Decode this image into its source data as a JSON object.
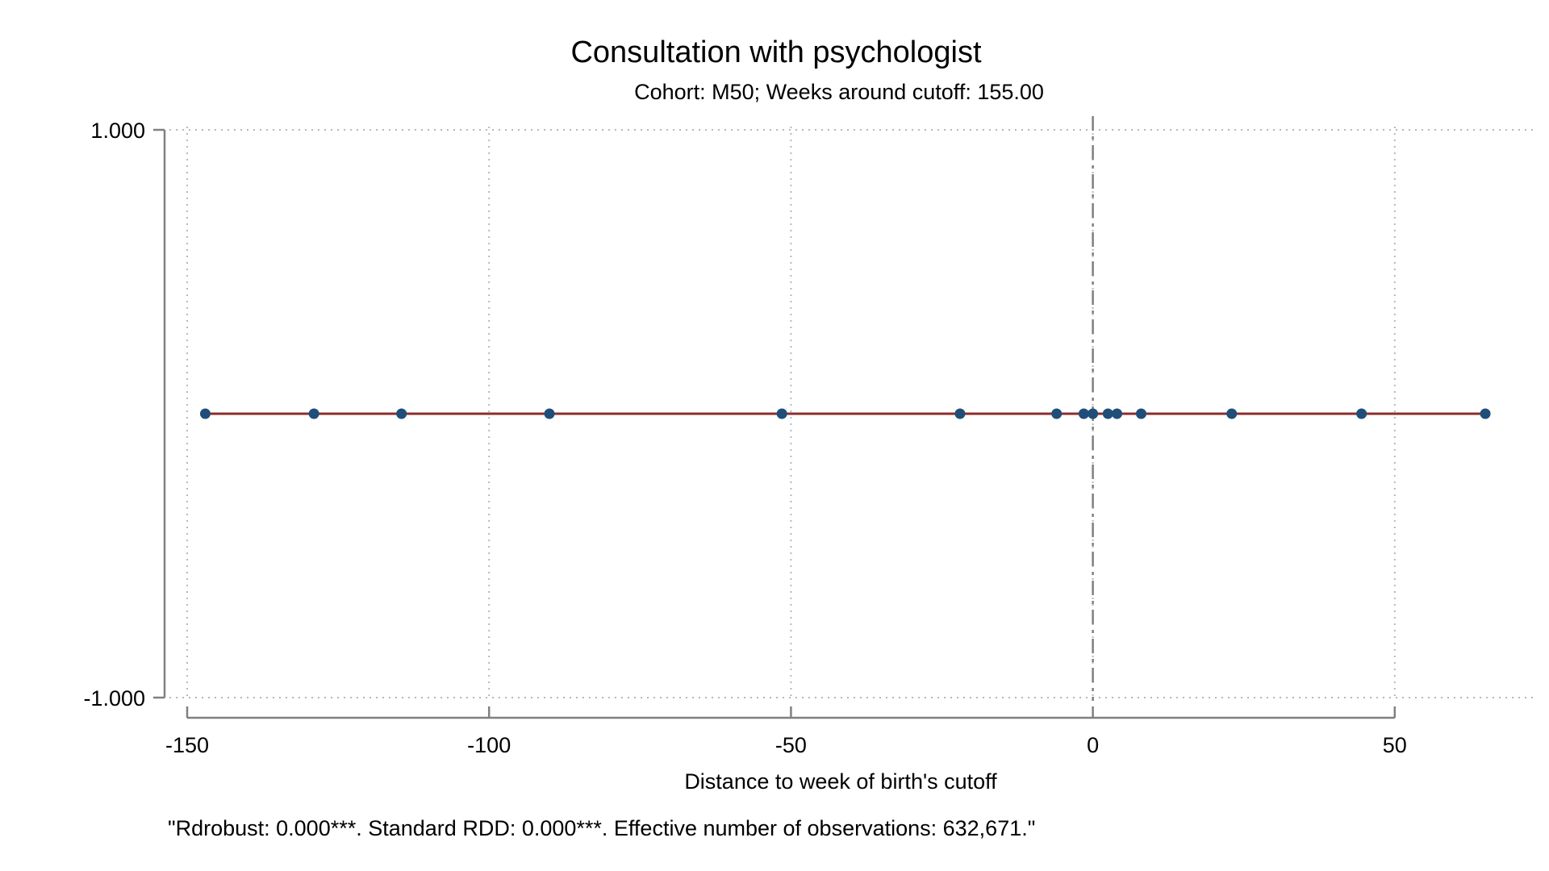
{
  "chart_data": {
    "type": "scatter",
    "title": "Consultation with psychologist",
    "subtitle": "Cohort: M50; Weeks around cutoff:  155.00",
    "xlabel": "Distance to week of birth's cutoff",
    "ylabel": "",
    "note": "\"Rdrobust: 0.000***. Standard RDD: 0.000***. Effective number of observations: 632,671.\"",
    "xlim": [
      -150,
      69
    ],
    "ylim": [
      -1,
      1
    ],
    "x_ticks": [
      -150,
      -100,
      -50,
      0,
      50
    ],
    "x_tick_labels": [
      "-150",
      "-100",
      "-50",
      "0",
      "50"
    ],
    "y_ticks": [
      1,
      -1
    ],
    "y_tick_labels": [
      "1.000",
      "-1.000"
    ],
    "grid": true,
    "cutoff_line_x": 0,
    "series": [
      {
        "type": "scatter",
        "x": [
          -147,
          -129,
          -114.5,
          -90,
          -51.5,
          -22,
          -6,
          -1.5,
          0,
          2.5,
          4,
          8,
          23,
          44.5,
          65
        ],
        "y": [
          0,
          0,
          0,
          0,
          0,
          0,
          0,
          0,
          0,
          0,
          0,
          0,
          0,
          0,
          0
        ]
      },
      {
        "type": "line",
        "x": [
          -147,
          65
        ],
        "y": [
          0,
          0
        ]
      }
    ],
    "colors": {
      "points": "#1f4e79",
      "fit_line": "#8b2d2d",
      "axis": "#808080",
      "grid": "#b8b8b8",
      "cutoff": "#808080"
    }
  }
}
